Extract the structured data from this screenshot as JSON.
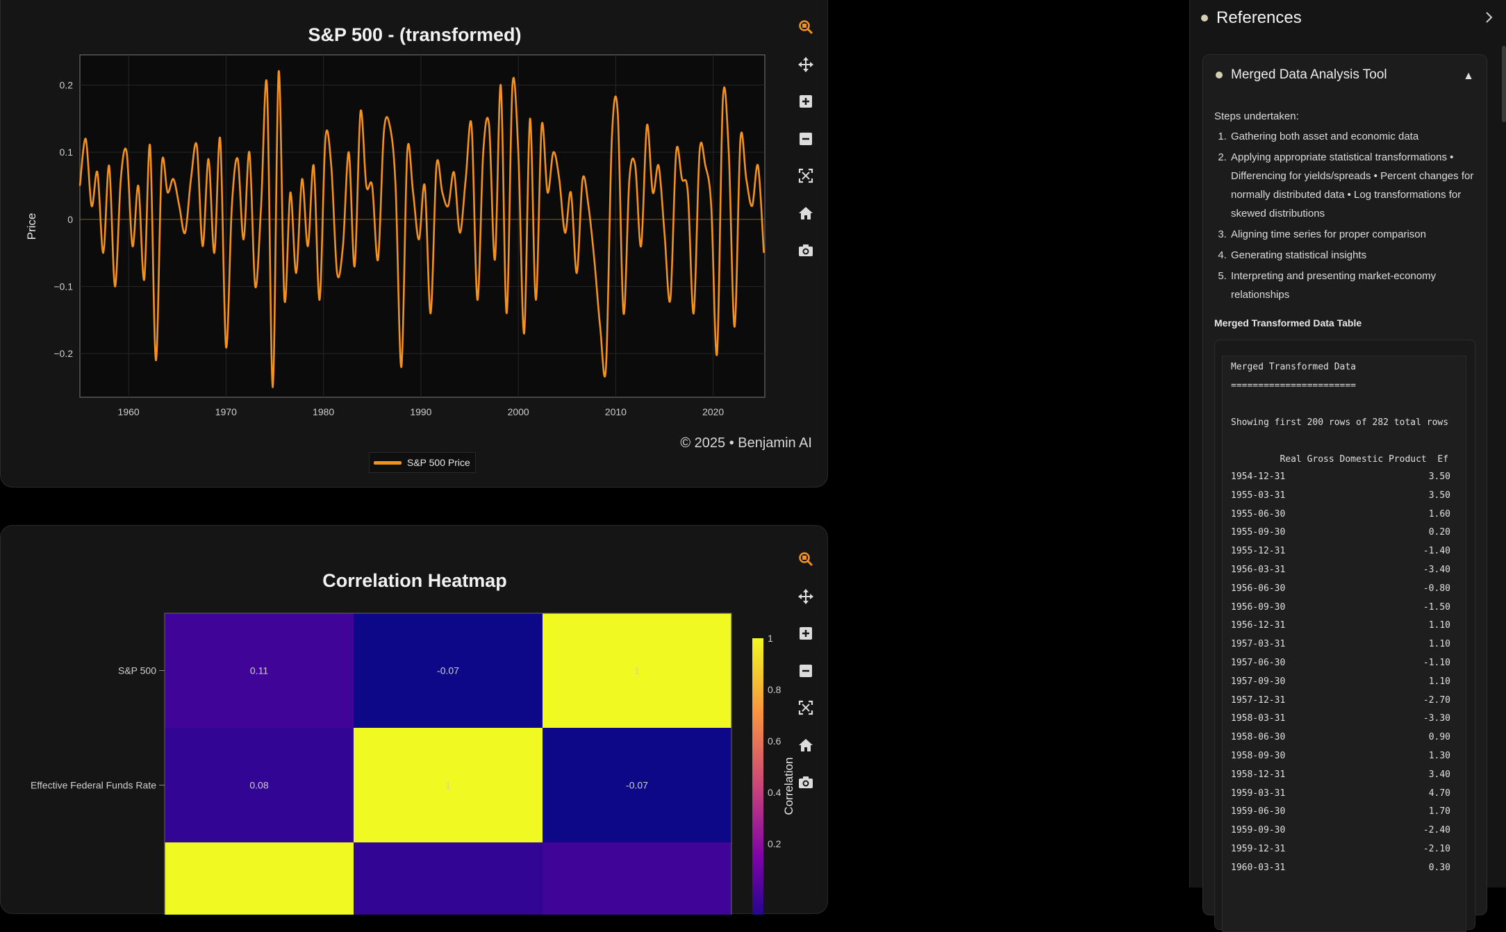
{
  "line_chart": {
    "title": "S&P 500 - (transformed)",
    "ylabel": "Price",
    "copyright": "© 2025 • Benjamin AI",
    "legend_label": "S&P 500 Price",
    "line_color": "#f5921e",
    "toolbar": [
      "zoom-icon",
      "pan-icon",
      "zoom-in-icon",
      "zoom-out-icon",
      "autoscale-icon",
      "home-icon",
      "camera-icon"
    ]
  },
  "heatmap": {
    "title": "Correlation Heatmap",
    "colorbar_title": "Correlation",
    "row_labels": [
      "S&P 500",
      "Effective Federal Funds Rate"
    ],
    "toolbar": [
      "zoom-icon",
      "pan-icon",
      "zoom-in-icon",
      "zoom-out-icon",
      "autoscale-icon",
      "home-icon",
      "camera-icon"
    ]
  },
  "chart_data": [
    {
      "type": "line",
      "title": "S&P 500 - (transformed)",
      "ylabel": "Price",
      "xlabel": "",
      "x_ticks": [
        "1960",
        "1970",
        "1980",
        "1990",
        "2000",
        "2010",
        "2020"
      ],
      "y_ticks": [
        "0.2",
        "0.1",
        "0",
        "−0.1",
        "−0.2"
      ],
      "xlim": [
        1955,
        2025.3
      ],
      "ylim": [
        -0.265,
        0.245
      ],
      "grid": true,
      "legend_position": "bottom",
      "series": [
        {
          "name": "S&P 500 Price",
          "x": [
            1955,
            1955.6,
            1956.2,
            1956.8,
            1957.4,
            1958.0,
            1958.6,
            1959.2,
            1959.8,
            1960.4,
            1961.0,
            1961.6,
            1962.2,
            1962.8,
            1963.4,
            1964.0,
            1964.6,
            1965.2,
            1965.8,
            1966.4,
            1967.0,
            1967.6,
            1968.2,
            1968.8,
            1969.4,
            1970.0,
            1970.6,
            1971.2,
            1971.8,
            1972.4,
            1973.0,
            1973.6,
            1974.2,
            1974.8,
            1975.4,
            1976.0,
            1976.6,
            1977.2,
            1977.8,
            1978.4,
            1979.0,
            1979.6,
            1980.2,
            1980.8,
            1981.4,
            1982.0,
            1982.6,
            1983.2,
            1983.8,
            1984.4,
            1985.0,
            1985.6,
            1986.2,
            1986.8,
            1987.4,
            1988.0,
            1988.6,
            1989.2,
            1989.8,
            1990.4,
            1991.0,
            1991.6,
            1992.2,
            1992.8,
            1993.4,
            1994.0,
            1994.6,
            1995.2,
            1995.8,
            1996.4,
            1997.0,
            1997.6,
            1998.2,
            1998.8,
            1999.4,
            2000.0,
            2000.6,
            2001.2,
            2001.8,
            2002.4,
            2003.0,
            2003.6,
            2004.2,
            2004.8,
            2005.4,
            2006.0,
            2006.6,
            2007.2,
            2007.8,
            2008.4,
            2009.0,
            2009.6,
            2010.2,
            2010.8,
            2011.4,
            2012.0,
            2012.6,
            2013.2,
            2013.8,
            2014.4,
            2015.0,
            2015.6,
            2016.2,
            2016.8,
            2017.4,
            2018.0,
            2018.6,
            2019.2,
            2019.8,
            2020.4,
            2021.0,
            2021.6,
            2022.2,
            2022.8,
            2023.4,
            2024.0,
            2024.6,
            2025.2
          ],
          "y": [
            0.05,
            0.12,
            0.02,
            0.07,
            -0.05,
            0.08,
            -0.1,
            0.06,
            0.1,
            -0.04,
            0.05,
            -0.09,
            0.11,
            -0.21,
            0.08,
            0.04,
            0.06,
            0.02,
            -0.02,
            0.06,
            0.11,
            -0.04,
            0.09,
            -0.05,
            0.12,
            -0.19,
            0.02,
            0.09,
            -0.03,
            0.1,
            -0.1,
            0.02,
            0.2,
            -0.25,
            0.22,
            -0.12,
            0.04,
            -0.08,
            0.06,
            -0.04,
            0.08,
            -0.12,
            0.12,
            0.08,
            -0.08,
            -0.04,
            0.1,
            -0.07,
            0.16,
            0.05,
            0.05,
            -0.06,
            0.13,
            0.14,
            0.05,
            -0.22,
            0.1,
            0.04,
            -0.03,
            0.05,
            -0.14,
            0.08,
            0.04,
            0.02,
            0.07,
            -0.02,
            0.06,
            0.14,
            -0.12,
            0.1,
            0.14,
            -0.06,
            0.2,
            -0.14,
            0.2,
            0.1,
            -0.17,
            0.15,
            -0.12,
            0.14,
            0.04,
            0.1,
            0.06,
            -0.02,
            0.04,
            -0.08,
            0.06,
            0.02,
            -0.06,
            -0.16,
            -0.22,
            0.12,
            0.16,
            -0.14,
            0.06,
            0.08,
            -0.04,
            0.14,
            0.04,
            0.08,
            -0.02,
            -0.12,
            0.1,
            0.06,
            0.04,
            -0.14,
            0.1,
            0.08,
            0.02,
            -0.2,
            0.18,
            0.1,
            -0.16,
            0.12,
            0.06,
            0.02,
            0.08,
            -0.05
          ],
          "color": "#f5921e"
        }
      ]
    },
    {
      "type": "heatmap",
      "title": "Correlation Heatmap",
      "row_labels": [
        "S&P 500",
        "Effective Federal Funds Rate"
      ],
      "values": [
        [
          0.11,
          -0.07,
          1
        ],
        [
          0.08,
          1,
          -0.07
        ],
        [
          1,
          0.08,
          0.11
        ]
      ],
      "colorbar_title": "Correlation",
      "colorbar_ticks": [
        "1",
        "0.8",
        "0.6",
        "0.4",
        "0.2"
      ],
      "colorscale": [
        "#0d0887",
        "#6a00a8",
        "#b12a90",
        "#e16462",
        "#fca636",
        "#f0f921"
      ]
    }
  ],
  "panel": {
    "title": "References",
    "tool_title": "Merged Data Analysis Tool",
    "steps_label": "Steps undertaken:",
    "steps": [
      "Gathering both asset and economic data",
      "Applying appropriate statistical transformations • Differencing for yields/spreads • Percent changes for normally distributed data • Log transformations for skewed distributions",
      "Aligning time series for proper comparison",
      "Generating statistical insights",
      "Interpreting and presenting market-economy relationships"
    ],
    "table_label": "Merged Transformed Data Table",
    "table": {
      "heading": "Merged Transformed Data",
      "underline": "=======================",
      "showing": "Showing first 200 rows of 282 total rows",
      "columns_line": "         Real Gross Domestic Product  Ef",
      "rows": [
        {
          "date": "1954-12-31",
          "value": "3.50"
        },
        {
          "date": "1955-03-31",
          "value": "3.50"
        },
        {
          "date": "1955-06-30",
          "value": "1.60"
        },
        {
          "date": "1955-09-30",
          "value": "0.20"
        },
        {
          "date": "1955-12-31",
          "value": "-1.40"
        },
        {
          "date": "1956-03-31",
          "value": "-3.40"
        },
        {
          "date": "1956-06-30",
          "value": "-0.80"
        },
        {
          "date": "1956-09-30",
          "value": "-1.50"
        },
        {
          "date": "1956-12-31",
          "value": "1.10"
        },
        {
          "date": "1957-03-31",
          "value": "1.10"
        },
        {
          "date": "1957-06-30",
          "value": "-1.10"
        },
        {
          "date": "1957-09-30",
          "value": "1.10"
        },
        {
          "date": "1957-12-31",
          "value": "-2.70"
        },
        {
          "date": "1958-03-31",
          "value": "-3.30"
        },
        {
          "date": "1958-06-30",
          "value": "0.90"
        },
        {
          "date": "1958-09-30",
          "value": "1.30"
        },
        {
          "date": "1958-12-31",
          "value": "3.40"
        },
        {
          "date": "1959-03-31",
          "value": "4.70"
        },
        {
          "date": "1959-06-30",
          "value": "1.70"
        },
        {
          "date": "1959-09-30",
          "value": "-2.40"
        },
        {
          "date": "1959-12-31",
          "value": "-2.10"
        },
        {
          "date": "1960-03-31",
          "value": "0.30"
        }
      ]
    }
  }
}
